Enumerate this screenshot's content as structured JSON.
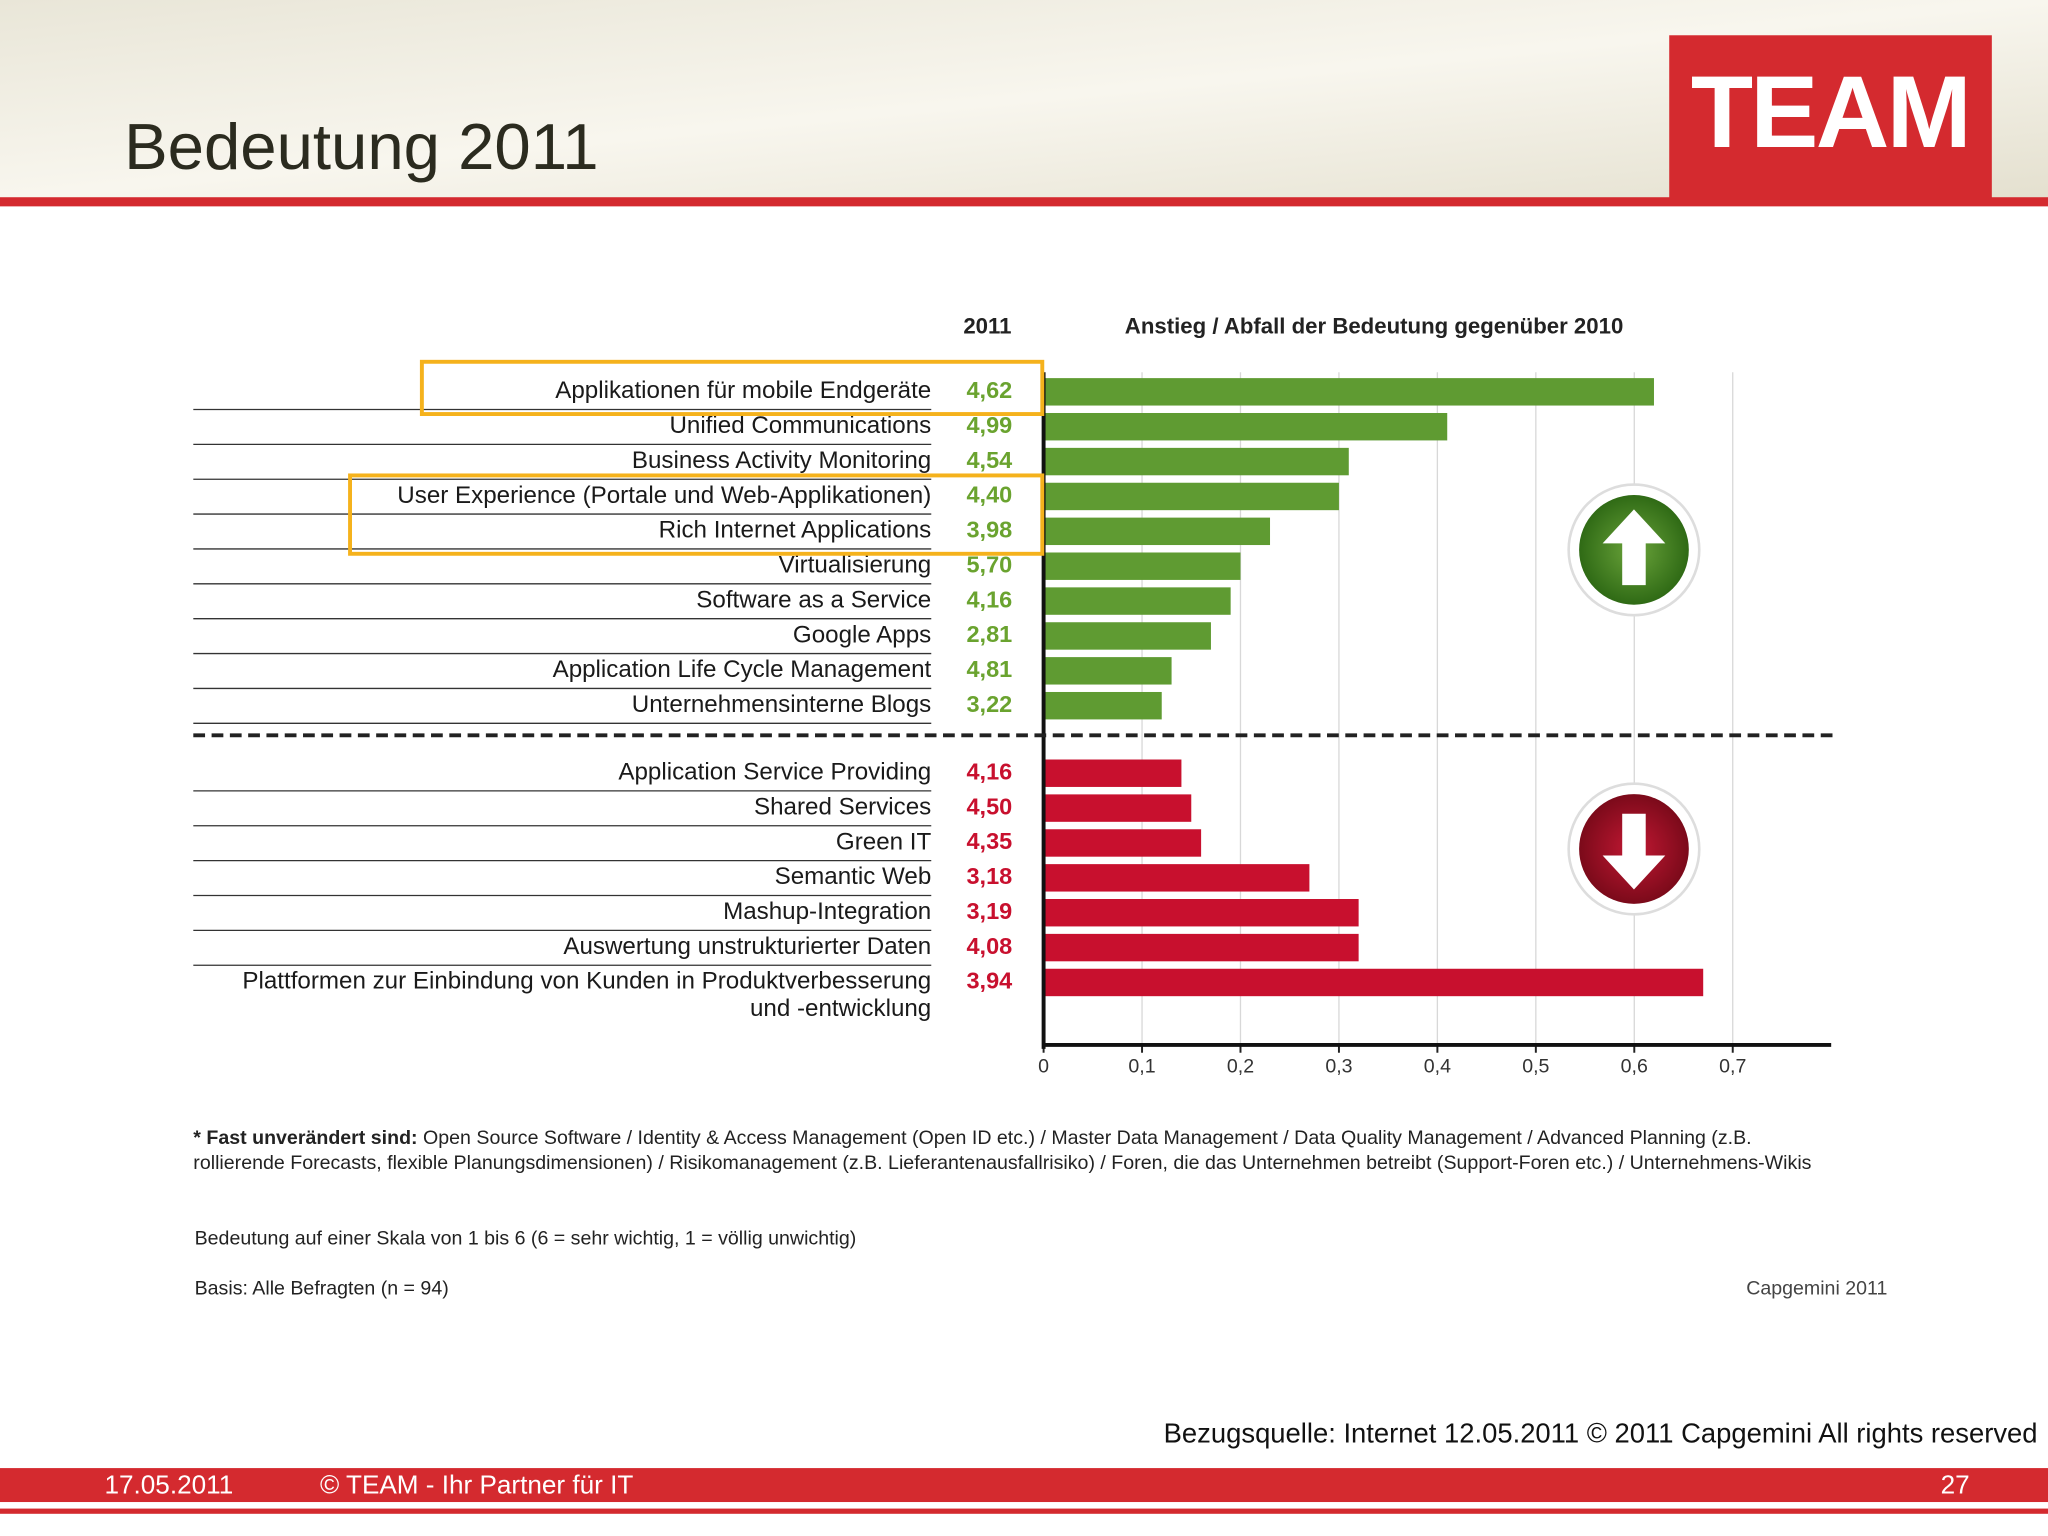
{
  "header": {
    "title": "Bedeutung 2011",
    "logo": "TEAM"
  },
  "chart_data": {
    "type": "bar",
    "orientation": "horizontal",
    "column_header": "2011",
    "title": "Anstieg / Abfall der Bedeutung gegenüber 2010",
    "groups": [
      {
        "color": "#5f9b32",
        "label_color": "#6aa32f",
        "categories": [
          "Applikationen für mobile Endgeräte",
          "Unified Communications",
          "Business Activity Monitoring",
          "User Experience  (Portale und Web-Applikationen)",
          "Rich Internet Applications",
          "Virtualisierung",
          "Software as a Service",
          "Google Apps",
          "Application Life Cycle Management",
          "Unternehmensinterne Blogs"
        ],
        "scores": [
          "4,62",
          "4,99",
          "4,54",
          "4,40",
          "3,98",
          "5,70",
          "4,16",
          "2,81",
          "4,81",
          "3,22"
        ],
        "values": [
          0.62,
          0.41,
          0.31,
          0.3,
          0.23,
          0.2,
          0.19,
          0.17,
          0.13,
          0.12
        ]
      },
      {
        "color": "#c8102e",
        "label_color": "#c8102e",
        "categories": [
          "Application Service Providing",
          "Shared Services",
          "Green IT",
          "Semantic Web",
          "Mashup-Integration",
          "Auswertung unstrukturierter Daten",
          "Plattformen zur Einbindung von Kunden in Produktverbesserung\nund -entwicklung"
        ],
        "scores": [
          "4,16",
          "4,50",
          "4,35",
          "3,18",
          "3,19",
          "4,08",
          "3,94"
        ],
        "values": [
          0.14,
          0.15,
          0.16,
          0.27,
          0.32,
          0.32,
          0.67
        ]
      }
    ],
    "xlim": [
      0,
      0.8
    ],
    "xticks": [
      0,
      {
        "value": 0.1,
        "label": "0,1"
      },
      {
        "value": 0.2,
        "label": "0,2"
      },
      {
        "value": 0.3,
        "label": "0,3"
      },
      {
        "value": 0.4,
        "label": "0,4"
      },
      {
        "value": 0.5,
        "label": "0,5"
      },
      {
        "value": 0.6,
        "label": "0,6"
      },
      {
        "value": 0.7,
        "label": "0,7"
      }
    ],
    "grid": true
  },
  "notes": {
    "lead": "* Fast unverändert sind:",
    "text": "Open Source Software / Identity & Access Management (Open ID etc.) / Master Data Management / Data Quality Management / Advanced Planning (z.B. rollierende Forecasts, flexible Planungsdimensionen) / Risikomanagement (z.B. Lieferantenausfallrisiko) / Foren, die das Unternehmen betreibt (Support-Foren etc.) / Unternehmens-Wikis",
    "scale": "Bedeutung auf einer Skala von 1 bis 6 (6 = sehr wichtig, 1 = völlig unwichtig)",
    "basis": "Basis: Alle Befragten (n = 94)",
    "credit": "Capgemini 2011"
  },
  "source": "Bezugsquelle: Internet 12.05.2011 © 2011 Capgemini All rights reserved",
  "footer": {
    "date": "17.05.2011",
    "text": "© TEAM - Ihr Partner für IT",
    "page": "27"
  }
}
